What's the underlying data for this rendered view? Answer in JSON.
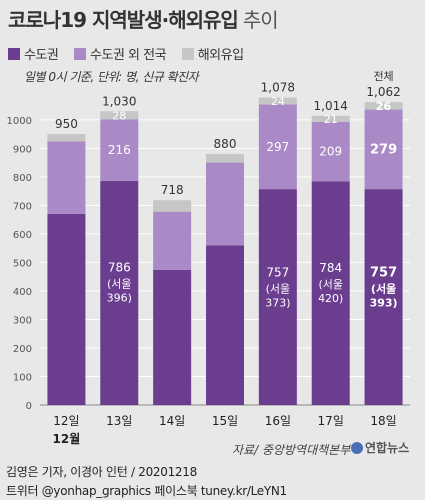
{
  "title": "코로나19 지역발생·해외유입",
  "title_suffix": "추이",
  "legend": [
    {
      "label": "수도권",
      "color": "#6a3d8f"
    },
    {
      "label": "수도권 외 전국",
      "color": "#a98ac6"
    },
    {
      "label": "해외유입",
      "color": "#c6c6c6"
    }
  ],
  "note": "일별 0시 기준, 단위: 명, 신규 확진자",
  "chart_data": {
    "type": "bar",
    "stacked": true,
    "categories": [
      "12일",
      "13일",
      "14일",
      "15일",
      "16일",
      "17일",
      "18일"
    ],
    "month_label": "12월",
    "totals": [
      950,
      1030,
      718,
      880,
      1078,
      1014,
      1062
    ],
    "total_prefix": "전체",
    "series": [
      {
        "name": "수도권",
        "color": "#6a3d8f",
        "values": [
          670,
          786,
          474,
          560,
          757,
          784,
          757
        ]
      },
      {
        "name": "수도권 외 전국",
        "color": "#a98ac6",
        "values": [
          254,
          216,
          204,
          290,
          297,
          209,
          279
        ]
      },
      {
        "name": "해외유입",
        "color": "#c6c6c6",
        "values": [
          26,
          28,
          40,
          30,
          24,
          21,
          26
        ]
      }
    ],
    "annotations": [
      {
        "index": 1,
        "capital": "786",
        "seoul": "(서울\n396)",
        "nonCapital": "216",
        "overseas": "28"
      },
      {
        "index": 4,
        "capital": "757",
        "seoul": "(서울\n373)",
        "nonCapital": "297",
        "overseas": "24"
      },
      {
        "index": 5,
        "capital": "784",
        "seoul": "(서울\n420)",
        "nonCapital": "209",
        "overseas": "21"
      },
      {
        "index": 6,
        "capital": "757",
        "seoul": "(서울\n393)",
        "nonCapital": "279",
        "overseas": "26",
        "bold": true
      }
    ],
    "yticks": [
      0,
      100,
      200,
      300,
      400,
      500,
      600,
      700,
      800,
      900,
      1000
    ],
    "ylim": [
      0,
      1080
    ],
    "grid": true
  },
  "source": "자료/ 중앙방역대책본부",
  "logo": "연합뉴스",
  "credit_line1": "김영은 기자, 이경아 인턴 / 20201218",
  "credit_line2": "트위터 @yonhap_graphics  페이스북 tuney.kr/LeYN1"
}
